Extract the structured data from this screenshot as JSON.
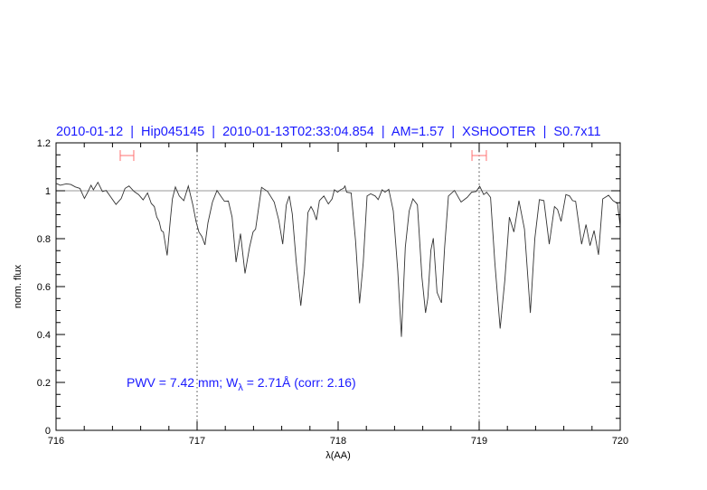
{
  "chart_data": {
    "type": "line",
    "title": "2010-01-12  |  Hip045145  |  2010-01-13T02:33:04.854  |  AM=1.57  |  XSHOOTER  |  S0.7x11",
    "xlabel": "λ(AA)",
    "ylabel": "norm. flux",
    "xlim": [
      716,
      720
    ],
    "ylim": [
      0,
      1.2
    ],
    "xticks": [
      "716",
      "717",
      "718",
      "719",
      "720"
    ],
    "yticks": [
      "0",
      "0.2",
      "0.4",
      "0.6",
      "0.8",
      "1",
      "1.2"
    ],
    "grid": false,
    "reference_line": {
      "y": 1.0,
      "color": "#d87a7a"
    },
    "vertical_dotted_lines": [
      717,
      719
    ],
    "markers": {
      "color": "#ff7070",
      "y": 1.147,
      "ranges": [
        [
          716.455,
          716.551
        ],
        [
          718.949,
          719.051
        ]
      ]
    },
    "annotation": {
      "prefix": "PWV = 7.42 mm; W",
      "subscript": "λ",
      "suffix": " = 2.71Å (corr: 2.16)"
    },
    "series": [
      {
        "color": "#333333",
        "x": [
          716.0,
          716.008,
          716.03,
          716.073,
          716.105,
          716.137,
          716.169,
          716.201,
          716.222,
          716.248,
          716.265,
          716.297,
          716.329,
          716.355,
          716.383,
          716.425,
          716.462,
          716.489,
          716.517,
          716.553,
          716.585,
          716.617,
          716.649,
          716.675,
          716.697,
          716.714,
          716.731,
          716.746,
          716.761,
          716.788,
          716.81,
          716.825,
          716.846,
          716.874,
          716.906,
          716.938,
          716.97,
          716.992,
          717.013,
          717.034,
          717.056,
          717.077,
          717.109,
          717.141,
          717.167,
          717.194,
          717.222,
          717.248,
          717.276,
          717.308,
          717.34,
          717.372,
          717.397,
          717.415,
          717.457,
          717.5,
          717.547,
          717.579,
          717.607,
          717.633,
          717.654,
          717.675,
          717.703,
          717.735,
          717.761,
          717.786,
          717.808,
          717.825,
          717.846,
          717.867,
          717.899,
          717.931,
          717.957,
          717.974,
          717.996,
          718.017,
          718.038,
          718.049,
          718.06,
          718.092,
          718.124,
          718.152,
          718.178,
          718.205,
          718.231,
          718.263,
          718.284,
          718.312,
          718.333,
          718.359,
          718.391,
          718.423,
          718.449,
          718.476,
          718.504,
          718.53,
          718.562,
          718.594,
          718.62,
          718.636,
          718.658,
          718.675,
          718.701,
          718.733,
          718.755,
          718.782,
          718.825,
          718.872,
          718.915,
          718.947,
          718.979,
          719.004,
          719.032,
          719.053,
          719.081,
          719.111,
          719.149,
          719.182,
          719.214,
          719.246,
          719.282,
          719.321,
          719.363,
          719.395,
          719.427,
          719.459,
          719.497,
          719.534,
          719.556,
          719.581,
          719.615,
          719.641,
          719.662,
          719.684,
          719.726,
          719.758,
          719.786,
          719.815,
          719.846,
          719.876,
          719.917,
          719.949,
          719.981,
          720.0
        ],
        "y": [
          1.03,
          1.029,
          1.023,
          1.029,
          1.026,
          1.016,
          1.01,
          0.968,
          0.991,
          1.023,
          1.004,
          1.035,
          0.997,
          1.001,
          0.978,
          0.943,
          0.968,
          1.01,
          1.02,
          0.997,
          0.984,
          0.962,
          0.991,
          0.947,
          0.934,
          0.89,
          0.872,
          0.834,
          0.828,
          0.73,
          0.878,
          0.966,
          1.016,
          0.978,
          0.959,
          1.02,
          0.941,
          0.872,
          0.828,
          0.809,
          0.774,
          0.866,
          0.953,
          1.001,
          0.978,
          0.956,
          0.957,
          0.89,
          0.702,
          0.821,
          0.655,
          0.764,
          0.828,
          0.84,
          1.014,
          0.997,
          0.953,
          0.878,
          0.777,
          0.941,
          0.978,
          0.903,
          0.702,
          0.52,
          0.664,
          0.909,
          0.934,
          0.915,
          0.878,
          0.959,
          0.978,
          0.945,
          0.966,
          1.004,
          0.994,
          1.004,
          1.01,
          1.02,
          0.994,
          0.991,
          0.79,
          0.53,
          0.702,
          0.978,
          0.987,
          0.978,
          0.963,
          1.004,
          0.994,
          1.006,
          0.916,
          0.664,
          0.39,
          0.764,
          0.916,
          0.966,
          0.941,
          0.639,
          0.49,
          0.551,
          0.752,
          0.802,
          0.576,
          0.532,
          0.764,
          0.978,
          1.001,
          0.953,
          0.972,
          0.994,
          0.997,
          1.019,
          0.984,
          0.994,
          0.972,
          0.702,
          0.425,
          0.627,
          0.89,
          0.828,
          0.959,
          0.84,
          0.49,
          0.802,
          0.963,
          0.959,
          0.777,
          0.934,
          0.922,
          0.872,
          0.984,
          0.978,
          0.959,
          0.956,
          0.777,
          0.859,
          0.771,
          0.834,
          0.733,
          0.966,
          0.981,
          0.959,
          0.947,
          0.852
        ]
      }
    ]
  }
}
